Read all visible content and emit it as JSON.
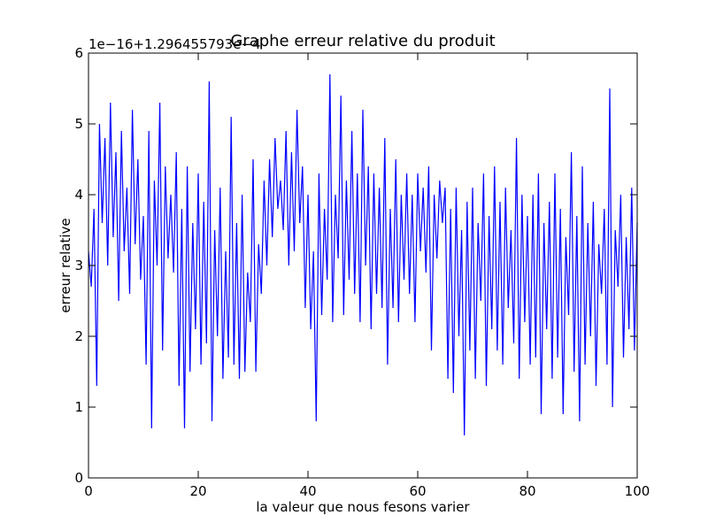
{
  "chart_data": {
    "type": "line",
    "title": "Graphe erreur relative du produit",
    "xlabel": "la valeur que nous fesons varier",
    "ylabel": "erreur relative",
    "offset_label": "1e−16+1.296455793e−4",
    "xlim": [
      0,
      100
    ],
    "ylim": [
      0,
      6
    ],
    "xticks": [
      "0",
      "20",
      "40",
      "60",
      "80",
      "100"
    ],
    "yticks": [
      "0",
      "1",
      "2",
      "3",
      "4",
      "5",
      "6"
    ],
    "grid": false,
    "legend": "none",
    "series": [
      {
        "color": "#0000ff",
        "x": [
          0,
          0.5,
          1,
          1.5,
          2,
          2.5,
          3,
          3.5,
          4,
          4.5,
          5,
          5.5,
          6,
          6.5,
          7,
          7.5,
          8,
          8.5,
          9,
          9.5,
          10,
          10.5,
          11,
          11.5,
          12,
          12.5,
          13,
          13.5,
          14,
          14.5,
          15,
          15.5,
          16,
          16.5,
          17,
          17.5,
          18,
          18.5,
          19,
          19.5,
          20,
          20.5,
          21,
          21.5,
          22,
          22.5,
          23,
          23.5,
          24,
          24.5,
          25,
          25.5,
          26,
          26.5,
          27,
          27.5,
          28,
          28.5,
          29,
          29.5,
          30,
          30.5,
          31,
          31.5,
          32,
          32.5,
          33,
          33.5,
          34,
          34.5,
          35,
          35.5,
          36,
          36.5,
          37,
          37.5,
          38,
          38.5,
          39,
          39.5,
          40,
          40.5,
          41,
          41.5,
          42,
          42.5,
          43,
          43.5,
          44,
          44.5,
          45,
          45.5,
          46,
          46.5,
          47,
          47.5,
          48,
          48.5,
          49,
          49.5,
          50,
          50.5,
          51,
          51.5,
          52,
          52.5,
          53,
          53.5,
          54,
          54.5,
          55,
          55.5,
          56,
          56.5,
          57,
          57.5,
          58,
          58.5,
          59,
          59.5,
          60,
          60.5,
          61,
          61.5,
          62,
          62.5,
          63,
          63.5,
          64,
          64.5,
          65,
          65.5,
          66,
          66.5,
          67,
          67.5,
          68,
          68.5,
          69,
          69.5,
          70,
          70.5,
          71,
          71.5,
          72,
          72.5,
          73,
          73.5,
          74,
          74.5,
          75,
          75.5,
          76,
          76.5,
          77,
          77.5,
          78,
          78.5,
          79,
          79.5,
          80,
          80.5,
          81,
          81.5,
          82,
          82.5,
          83,
          83.5,
          84,
          84.5,
          85,
          85.5,
          86,
          86.5,
          87,
          87.5,
          88,
          88.5,
          89,
          89.5,
          90,
          90.5,
          91,
          91.5,
          92,
          92.5,
          93,
          93.5,
          94,
          94.5,
          95,
          95.5,
          96,
          96.5,
          97,
          97.5,
          98,
          98.5,
          99,
          99.5,
          100
        ],
        "y": [
          3.2,
          2.7,
          3.8,
          1.3,
          5.0,
          3.6,
          4.8,
          3.0,
          5.3,
          3.4,
          4.6,
          2.5,
          4.9,
          3.2,
          4.1,
          2.6,
          5.2,
          3.3,
          4.5,
          2.8,
          3.7,
          1.6,
          4.9,
          0.7,
          4.2,
          3.0,
          5.3,
          1.8,
          4.4,
          3.1,
          4.0,
          2.9,
          4.6,
          1.3,
          3.8,
          0.7,
          4.4,
          1.5,
          3.6,
          2.1,
          4.3,
          1.6,
          3.9,
          1.9,
          5.6,
          0.8,
          3.5,
          2.0,
          4.1,
          1.4,
          3.2,
          1.7,
          5.1,
          1.6,
          3.6,
          1.4,
          4.0,
          1.5,
          2.9,
          2.2,
          4.5,
          1.5,
          3.3,
          2.6,
          4.2,
          3.0,
          4.5,
          3.4,
          4.8,
          3.8,
          4.2,
          3.5,
          4.9,
          3.0,
          4.6,
          3.2,
          5.2,
          3.6,
          4.4,
          2.4,
          4.0,
          2.1,
          3.2,
          0.8,
          4.3,
          2.3,
          3.8,
          2.8,
          5.7,
          2.2,
          4.0,
          3.1,
          5.4,
          2.3,
          4.2,
          2.8,
          4.9,
          2.6,
          4.3,
          2.2,
          5.2,
          3.0,
          4.4,
          2.1,
          4.3,
          2.6,
          4.1,
          2.4,
          4.8,
          1.6,
          3.8,
          2.4,
          4.5,
          2.2,
          4.0,
          2.8,
          4.3,
          2.6,
          4.0,
          2.2,
          4.3,
          3.2,
          4.1,
          2.9,
          4.4,
          1.8,
          4.0,
          3.1,
          4.2,
          3.6,
          4.1,
          1.4,
          3.8,
          1.2,
          4.1,
          2.0,
          3.5,
          0.6,
          3.9,
          1.8,
          4.1,
          1.4,
          3.6,
          2.5,
          4.3,
          1.3,
          3.7,
          2.1,
          4.4,
          1.8,
          3.9,
          1.6,
          4.1,
          2.4,
          3.5,
          1.9,
          4.8,
          1.4,
          4.0,
          2.2,
          3.7,
          1.6,
          4.0,
          1.7,
          4.3,
          0.9,
          3.6,
          2.1,
          3.9,
          1.4,
          4.3,
          1.7,
          3.8,
          0.9,
          3.4,
          2.3,
          4.6,
          1.5,
          3.7,
          0.8,
          4.4,
          1.6,
          3.6,
          2.0,
          3.9,
          1.3,
          3.3,
          2.6,
          3.8,
          1.6,
          5.5,
          1.0,
          3.5,
          2.7,
          4.0,
          1.7,
          3.4,
          2.1,
          4.1,
          1.8,
          3.6
        ]
      }
    ]
  }
}
